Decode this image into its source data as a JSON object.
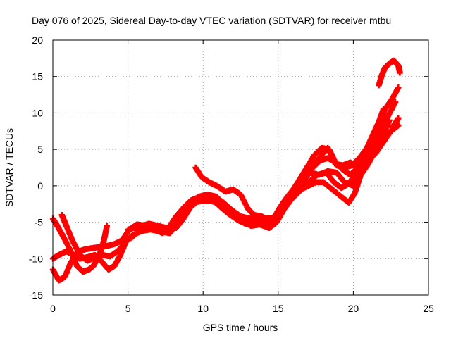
{
  "chart_data": {
    "type": "scatter",
    "title": "Day 076 of 2025, Sidereal Day-to-day VTEC variation (SDTVAR) for receiver mtbu",
    "xlabel": "GPS time / hours",
    "ylabel": "SDTVAR / TECUs",
    "xlim": [
      0,
      25
    ],
    "ylim": [
      -15,
      20
    ],
    "x_ticks": [
      "0",
      "5",
      "10",
      "15",
      "20",
      "25"
    ],
    "y_ticks": [
      "-15",
      "-10",
      "-5",
      "0",
      "5",
      "10",
      "15",
      "20"
    ],
    "grid": true,
    "marker": "plus",
    "color": "#ff0000",
    "series": [
      {
        "points": [
          [
            0,
            -4.5
          ],
          [
            0.3,
            -5.5
          ],
          [
            0.7,
            -7
          ],
          [
            1.2,
            -9
          ],
          [
            1.6,
            -11
          ],
          [
            2.0,
            -11.8
          ],
          [
            2.4,
            -11.5
          ],
          [
            2.7,
            -11
          ],
          [
            3.1,
            -9.5
          ],
          [
            3.4,
            -7.5
          ],
          [
            3.6,
            -5.5
          ]
        ]
      },
      {
        "points": [
          [
            0,
            -10
          ],
          [
            0.4,
            -9.5
          ],
          [
            0.9,
            -9
          ],
          [
            1.4,
            -9.5
          ],
          [
            1.8,
            -10
          ],
          [
            2.3,
            -9.8
          ],
          [
            2.8,
            -9.5
          ],
          [
            3.3,
            -10.5
          ],
          [
            3.7,
            -11.5
          ],
          [
            4.1,
            -11
          ],
          [
            4.5,
            -9.5
          ],
          [
            4.9,
            -7.5
          ],
          [
            5.3,
            -7
          ],
          [
            5.7,
            -6.2
          ],
          [
            6.2,
            -5.8
          ],
          [
            6.8,
            -6
          ],
          [
            7.3,
            -6.5
          ],
          [
            7.7,
            -5.8
          ],
          [
            8.2,
            -4.2
          ],
          [
            8.7,
            -3
          ],
          [
            9.2,
            -2
          ],
          [
            9.8,
            -1.5
          ],
          [
            10.4,
            -1.8
          ],
          [
            11.0,
            -2.5
          ],
          [
            11.6,
            -3.5
          ],
          [
            12.2,
            -4.5
          ],
          [
            12.8,
            -5.2
          ],
          [
            13.4,
            -5
          ],
          [
            14.0,
            -5.2
          ],
          [
            14.5,
            -5.5
          ],
          [
            15.0,
            -4
          ],
          [
            15.5,
            -2.5
          ],
          [
            16.0,
            -1
          ],
          [
            16.5,
            -0.5
          ],
          [
            17.0,
            0
          ],
          [
            17.5,
            0.5
          ],
          [
            18.0,
            0.5
          ],
          [
            18.6,
            -0.5
          ],
          [
            19.2,
            -1.5
          ],
          [
            19.7,
            -2.3
          ],
          [
            20.1,
            -1
          ],
          [
            20.5,
            1.5
          ],
          [
            21.0,
            3
          ],
          [
            21.5,
            5
          ],
          [
            22.0,
            6.5
          ],
          [
            22.5,
            7.5
          ],
          [
            22.9,
            8.5
          ]
        ]
      },
      {
        "points": [
          [
            0,
            -11.5
          ],
          [
            0.4,
            -13
          ],
          [
            0.8,
            -12.5
          ],
          [
            1.2,
            -10.5
          ],
          [
            1.7,
            -9
          ],
          [
            2.2,
            -8.7
          ],
          [
            2.8,
            -8.5
          ],
          [
            3.5,
            -8.3
          ],
          [
            4.1,
            -8
          ],
          [
            4.6,
            -7.5
          ],
          [
            5.1,
            -6
          ],
          [
            5.6,
            -5.3
          ],
          [
            6.2,
            -5.5
          ],
          [
            6.8,
            -5.8
          ],
          [
            7.5,
            -6
          ],
          [
            8.1,
            -5.5
          ],
          [
            8.6,
            -4
          ],
          [
            9.1,
            -2.5
          ],
          [
            9.7,
            -1.5
          ],
          [
            10.3,
            -1.2
          ],
          [
            10.9,
            -1.5
          ],
          [
            11.5,
            -2.8
          ],
          [
            12.1,
            -3.8
          ],
          [
            12.7,
            -4.5
          ],
          [
            13.3,
            -4.8
          ],
          [
            14.0,
            -4.6
          ],
          [
            14.6,
            -4.8
          ],
          [
            15.1,
            -3
          ],
          [
            15.6,
            -1.5
          ],
          [
            16.2,
            0
          ],
          [
            16.7,
            1.5
          ],
          [
            17.2,
            1.8
          ],
          [
            17.7,
            1.5
          ],
          [
            18.3,
            2
          ],
          [
            18.9,
            1.8
          ],
          [
            19.4,
            0.5
          ],
          [
            20.0,
            0
          ],
          [
            20.5,
            1.5
          ],
          [
            21.0,
            3.5
          ],
          [
            21.5,
            4.5
          ],
          [
            22.0,
            6
          ],
          [
            22.5,
            7.5
          ],
          [
            23.0,
            8.3
          ]
        ]
      },
      {
        "points": [
          [
            0.6,
            -4
          ],
          [
            0.9,
            -5.5
          ],
          [
            1.3,
            -7.5
          ],
          [
            1.8,
            -9.5
          ],
          [
            2.3,
            -10.3
          ],
          [
            2.8,
            -9.8
          ],
          [
            3.3,
            -9.5
          ],
          [
            3.8,
            -9.7
          ],
          [
            4.3,
            -9
          ],
          [
            4.8,
            -7.8
          ],
          [
            5.3,
            -6.8
          ],
          [
            5.9,
            -6.2
          ],
          [
            6.5,
            -6
          ],
          [
            7.2,
            -6.3
          ],
          [
            7.8,
            -6.5
          ],
          [
            8.4,
            -4.8
          ],
          [
            9.0,
            -3.2
          ],
          [
            9.6,
            -2.2
          ],
          [
            10.2,
            -2
          ],
          [
            10.8,
            -2.2
          ],
          [
            11.4,
            -3.2
          ],
          [
            12.0,
            -4.2
          ],
          [
            12.6,
            -4.8
          ],
          [
            13.2,
            -5.5
          ],
          [
            13.8,
            -5.3
          ],
          [
            14.4,
            -5.8
          ],
          [
            14.9,
            -5
          ],
          [
            15.4,
            -3.2
          ],
          [
            15.9,
            -1.8
          ],
          [
            16.4,
            -0.8
          ],
          [
            17.0,
            0.5
          ],
          [
            17.6,
            1.5
          ],
          [
            18.2,
            1.8
          ],
          [
            18.7,
            0.5
          ],
          [
            19.2,
            -0.3
          ],
          [
            19.7,
            0.3
          ],
          [
            20.2,
            1.8
          ],
          [
            20.7,
            3.5
          ],
          [
            21.2,
            5.5
          ],
          [
            21.7,
            8
          ],
          [
            22.1,
            10.5
          ],
          [
            22.6,
            12
          ],
          [
            23.0,
            13.5
          ]
        ]
      },
      {
        "points": [
          [
            5,
            -6
          ],
          [
            5.8,
            -5.6
          ],
          [
            6.4,
            -5.2
          ],
          [
            7.0,
            -5.5
          ],
          [
            7.6,
            -5.8
          ],
          [
            8.2,
            -5.3
          ],
          [
            8.8,
            -3.5
          ],
          [
            9.4,
            -2.2
          ],
          [
            10.0,
            -1.5
          ],
          [
            10.6,
            -1.8
          ],
          [
            11.2,
            -3
          ],
          [
            11.8,
            -4
          ],
          [
            12.4,
            -4.8
          ],
          [
            13.0,
            -5.3
          ],
          [
            13.6,
            -5.2
          ],
          [
            14.2,
            -5.6
          ],
          [
            14.7,
            -5.3
          ],
          [
            15.2,
            -3.8
          ],
          [
            15.7,
            -2
          ],
          [
            16.2,
            -0.5
          ],
          [
            16.8,
            1
          ],
          [
            17.3,
            2.5
          ],
          [
            17.8,
            3.5
          ],
          [
            18.3,
            3.8
          ],
          [
            18.8,
            3.3
          ],
          [
            19.3,
            2.2
          ],
          [
            19.8,
            1.5
          ],
          [
            20.3,
            2.5
          ],
          [
            20.8,
            3.5
          ],
          [
            21.3,
            5
          ],
          [
            21.8,
            7
          ],
          [
            22.3,
            9.5
          ],
          [
            22.8,
            11.5
          ]
        ]
      },
      {
        "points": [
          [
            8.2,
            -5.8
          ],
          [
            8.7,
            -4.5
          ],
          [
            9.2,
            -2.8
          ],
          [
            9.6,
            -2
          ],
          [
            10.1,
            -1.3
          ],
          [
            10.7,
            -1.5
          ],
          [
            11.3,
            -2.2
          ],
          [
            11.9,
            -3.3
          ],
          [
            12.5,
            -4.2
          ],
          [
            13.1,
            -4.5
          ],
          [
            13.7,
            -4.3
          ],
          [
            14.3,
            -4.5
          ],
          [
            14.8,
            -4.3
          ],
          [
            15.3,
            -3
          ],
          [
            15.8,
            -1.5
          ],
          [
            16.3,
            -0.3
          ],
          [
            16.8,
            1.2
          ],
          [
            17.3,
            2.8
          ],
          [
            17.8,
            4
          ],
          [
            18.3,
            5.2
          ],
          [
            18.8,
            3
          ],
          [
            19.3,
            2.8
          ],
          [
            19.8,
            3.2
          ],
          [
            20.2,
            2.5
          ],
          [
            20.7,
            3.5
          ],
          [
            21.2,
            4.5
          ],
          [
            21.6,
            5.5
          ],
          [
            22.0,
            7
          ],
          [
            22.4,
            9
          ]
        ]
      },
      {
        "points": [
          [
            9.5,
            2.5
          ],
          [
            9.9,
            1.2
          ],
          [
            10.4,
            0.5
          ],
          [
            10.9,
            0
          ],
          [
            11.5,
            -0.8
          ],
          [
            12.0,
            -0.5
          ],
          [
            12.5,
            -1.2
          ],
          [
            13.0,
            -3.2
          ],
          [
            13.4,
            -4
          ],
          [
            13.9,
            -4.2
          ],
          [
            14.4,
            -4.8
          ],
          [
            14.9,
            -4.3
          ],
          [
            15.4,
            -2.8
          ],
          [
            15.9,
            -0.8
          ],
          [
            16.4,
            0.8
          ],
          [
            16.9,
            2.5
          ],
          [
            17.4,
            4.2
          ],
          [
            17.9,
            5.2
          ],
          [
            18.4,
            5
          ],
          [
            18.9,
            2.8
          ],
          [
            19.4,
            2.5
          ],
          [
            19.9,
            2.8
          ],
          [
            20.4,
            3.8
          ],
          [
            20.9,
            5.2
          ],
          [
            21.3,
            7
          ],
          [
            21.7,
            8.8
          ],
          [
            22.0,
            10.5
          ]
        ]
      },
      {
        "points": [
          [
            21.7,
            13.8
          ],
          [
            21.9,
            15.2
          ],
          [
            22.1,
            16.2
          ],
          [
            22.4,
            16.8
          ],
          [
            22.7,
            17.2
          ],
          [
            23.0,
            16.5
          ],
          [
            23.1,
            15.5
          ]
        ]
      },
      {
        "points": [
          [
            22.6,
            8
          ],
          [
            22.8,
            8.6
          ],
          [
            23.0,
            9.3
          ]
        ]
      }
    ]
  }
}
